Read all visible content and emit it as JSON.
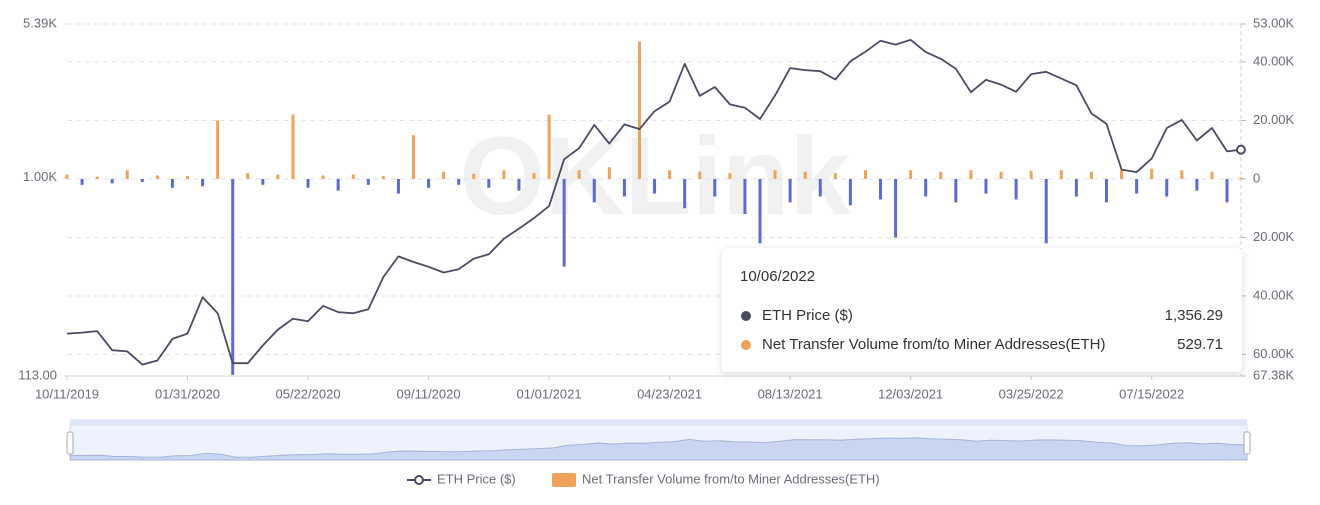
{
  "chart_data": {
    "type": "line",
    "watermark": "OKLink",
    "x": [
      "10/11/2019",
      "10/25/2019",
      "11/08/2019",
      "11/22/2019",
      "12/06/2019",
      "12/20/2019",
      "01/03/2020",
      "01/17/2020",
      "01/31/2020",
      "02/14/2020",
      "02/28/2020",
      "03/13/2020",
      "03/27/2020",
      "04/10/2020",
      "04/24/2020",
      "05/08/2020",
      "05/22/2020",
      "06/05/2020",
      "06/19/2020",
      "07/03/2020",
      "07/17/2020",
      "07/31/2020",
      "08/14/2020",
      "08/28/2020",
      "09/11/2020",
      "09/25/2020",
      "10/09/2020",
      "10/23/2020",
      "11/06/2020",
      "11/20/2020",
      "12/04/2020",
      "12/18/2020",
      "01/01/2021",
      "01/15/2021",
      "01/29/2021",
      "02/12/2021",
      "02/26/2021",
      "03/12/2021",
      "03/26/2021",
      "04/09/2021",
      "04/23/2021",
      "05/07/2021",
      "05/21/2021",
      "06/04/2021",
      "06/18/2021",
      "07/02/2021",
      "07/16/2021",
      "07/30/2021",
      "08/13/2021",
      "08/27/2021",
      "09/10/2021",
      "09/24/2021",
      "10/08/2021",
      "10/22/2021",
      "11/05/2021",
      "11/19/2021",
      "12/03/2021",
      "12/17/2021",
      "12/31/2021",
      "01/14/2022",
      "01/28/2022",
      "02/11/2022",
      "02/25/2022",
      "03/11/2022",
      "03/25/2022",
      "04/08/2022",
      "04/22/2022",
      "05/06/2022",
      "05/20/2022",
      "06/03/2022",
      "06/17/2022",
      "07/01/2022",
      "07/15/2022",
      "07/29/2022",
      "08/12/2022",
      "08/26/2022",
      "09/09/2022",
      "09/23/2022",
      "10/06/2022"
    ],
    "xticks": [
      "10/11/2019",
      "01/31/2020",
      "05/22/2020",
      "09/11/2020",
      "01/01/2021",
      "04/23/2021",
      "08/13/2021",
      "12/03/2021",
      "03/25/2022",
      "07/15/2022"
    ],
    "series": [
      {
        "name": "ETH Price ($)",
        "type": "line",
        "color": "#4b4b63",
        "values": [
          180,
          182,
          185,
          150,
          148,
          128,
          134,
          170,
          180,
          268,
          225,
          130,
          130,
          158,
          188,
          212,
          206,
          244,
          228,
          225,
          235,
          335,
          420,
          395,
          375,
          352,
          365,
          410,
          430,
          510,
          570,
          640,
          730,
          1220,
          1380,
          1780,
          1450,
          1790,
          1700,
          2070,
          2300,
          3480,
          2450,
          2700,
          2230,
          2150,
          1900,
          2460,
          3320,
          3250,
          3210,
          2930,
          3580,
          3970,
          4480,
          4300,
          4530,
          3960,
          3680,
          3300,
          2550,
          2920,
          2770,
          2560,
          3110,
          3190,
          2960,
          2750,
          2020,
          1800,
          1090,
          1060,
          1230,
          1720,
          1880,
          1500,
          1720,
          1330,
          1356.29
        ]
      },
      {
        "name": "Net Transfer Volume from/to Miner Addresses(ETH)",
        "type": "bar",
        "axis": "y2",
        "color": "#eea25b",
        "negative_color": "#5c6ccc",
        "values": [
          1500,
          -2000,
          800,
          -1500,
          3000,
          -1000,
          1200,
          -3000,
          1000,
          -2500,
          20000,
          -67000,
          2000,
          -2000,
          1500,
          22000,
          -3000,
          1200,
          -4000,
          1500,
          -2000,
          1000,
          -5000,
          15000,
          -3000,
          2500,
          -2000,
          1800,
          -3000,
          3000,
          -4000,
          2000,
          22000,
          -30000,
          3000,
          -8000,
          4000,
          -6000,
          47000,
          -5000,
          3000,
          -10000,
          2500,
          -6000,
          2000,
          -12000,
          -22000,
          3000,
          -8000,
          2500,
          -6000,
          2000,
          -9000,
          3000,
          -7000,
          -20000,
          3000,
          -6000,
          2500,
          -8000,
          3000,
          -5000,
          2500,
          -7000,
          2800,
          -22000,
          3000,
          -6000,
          2500,
          -8000,
          3000,
          -5000,
          3500,
          -6000,
          3000,
          -4000,
          2500,
          -8000,
          529.71
        ]
      }
    ],
    "tooltip_labels": [
      "1,356.29",
      "529.71"
    ],
    "yscale": "log",
    "ylim": [
      113,
      5390
    ],
    "yticks": [
      {
        "value": 113,
        "label": "113.00"
      },
      {
        "value": 1000,
        "label": "1.00K"
      },
      {
        "value": 5390,
        "label": "5.39K"
      }
    ],
    "y2lim": [
      -67380,
      53000
    ],
    "y2ticks": [
      {
        "value": 53000,
        "label": "53.00K"
      },
      {
        "value": 40000,
        "label": "40.00K"
      },
      {
        "value": 20000,
        "label": "20.00K"
      },
      0,
      {
        "value": -20000,
        "label": "20.00K"
      },
      {
        "value": -40000,
        "label": "40.00K"
      },
      {
        "value": -60000,
        "label": "60.00K"
      },
      {
        "value": -67380,
        "label": "67.38K"
      }
    ],
    "grid": true,
    "legend": "bottom"
  }
}
